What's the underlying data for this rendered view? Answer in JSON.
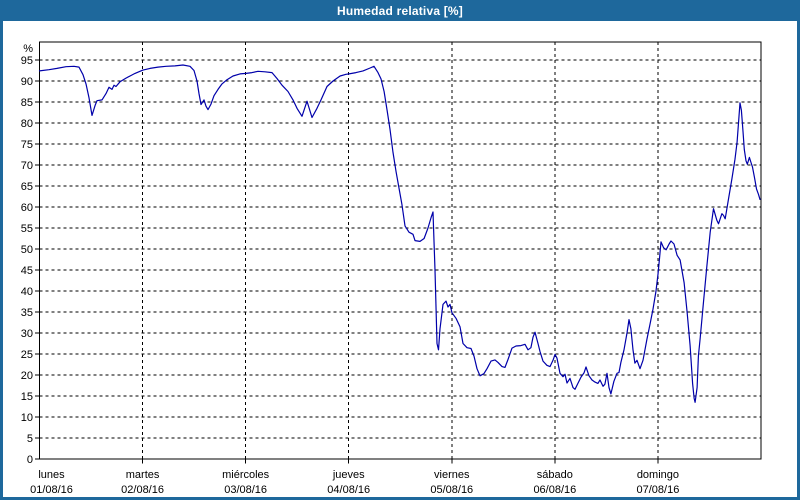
{
  "window": {
    "title": "Humedad relativa [%]"
  },
  "colors": {
    "titlebar_bg": "#1E689C",
    "titlebar_text": "#FFFFFF",
    "outer_border": "#1E689C",
    "plot_bg": "#FFFFFF",
    "line": "#0000AA",
    "grid": "#000000",
    "axis": "#000000",
    "text": "#000000"
  },
  "chart_data": {
    "type": "line",
    "title": "Humedad relativa [%]",
    "xlabel": "",
    "ylabel": "%",
    "ylim": [
      0,
      99.3
    ],
    "xlim_days": [
      0,
      7
    ],
    "y_ticks": [
      0,
      5,
      10,
      15,
      20,
      25,
      30,
      35,
      40,
      45,
      50,
      55,
      60,
      65,
      70,
      75,
      80,
      85,
      90,
      95
    ],
    "grid": "dashed, horizontal every 5%, vertical at each day boundary",
    "legend": "none",
    "x_labels": [
      {
        "day": "lunes",
        "date": "01/08/16"
      },
      {
        "day": "martes",
        "date": "02/08/16"
      },
      {
        "day": "miércoles",
        "date": "03/08/16"
      },
      {
        "day": "jueves",
        "date": "04/08/16"
      },
      {
        "day": "viernes",
        "date": "05/08/16"
      },
      {
        "day": "sábado",
        "date": "06/08/16"
      },
      {
        "day": "domingo",
        "date": "07/08/16"
      }
    ],
    "series": [
      {
        "name": "Humedad relativa",
        "unit": "%",
        "x_unit": "days since lunes 01/08/16 00:00",
        "points": [
          [
            0.0,
            92.4
          ],
          [
            0.092,
            92.7
          ],
          [
            0.17,
            93.0
          ],
          [
            0.257,
            93.4
          ],
          [
            0.335,
            93.5
          ],
          [
            0.383,
            93.3
          ],
          [
            0.422,
            91.5
          ],
          [
            0.451,
            89.3
          ],
          [
            0.48,
            86.0
          ],
          [
            0.509,
            81.8
          ],
          [
            0.539,
            84.2
          ],
          [
            0.558,
            85.3
          ],
          [
            0.606,
            85.5
          ],
          [
            0.645,
            87.0
          ],
          [
            0.674,
            88.5
          ],
          [
            0.703,
            88.0
          ],
          [
            0.723,
            89.0
          ],
          [
            0.742,
            88.7
          ],
          [
            0.781,
            89.8
          ],
          [
            0.839,
            90.7
          ],
          [
            0.888,
            91.3
          ],
          [
            0.927,
            91.8
          ],
          [
            0.975,
            92.3
          ],
          [
            1.004,
            92.6
          ],
          [
            1.072,
            93.0
          ],
          [
            1.15,
            93.3
          ],
          [
            1.227,
            93.5
          ],
          [
            1.315,
            93.6
          ],
          [
            1.392,
            93.8
          ],
          [
            1.46,
            93.5
          ],
          [
            1.499,
            92.5
          ],
          [
            1.528,
            90.0
          ],
          [
            1.547,
            87.0
          ],
          [
            1.567,
            84.4
          ],
          [
            1.596,
            85.5
          ],
          [
            1.615,
            84.0
          ],
          [
            1.635,
            83.2
          ],
          [
            1.664,
            84.5
          ],
          [
            1.693,
            86.5
          ],
          [
            1.732,
            88.0
          ],
          [
            1.771,
            89.3
          ],
          [
            1.819,
            90.3
          ],
          [
            1.877,
            91.2
          ],
          [
            1.945,
            91.7
          ],
          [
            2.003,
            91.8
          ],
          [
            2.062,
            92.0
          ],
          [
            2.12,
            92.3
          ],
          [
            2.188,
            92.2
          ],
          [
            2.256,
            92.0
          ],
          [
            2.304,
            90.6
          ],
          [
            2.353,
            89.0
          ],
          [
            2.411,
            87.5
          ],
          [
            2.459,
            85.5
          ],
          [
            2.498,
            83.5
          ],
          [
            2.547,
            81.6
          ],
          [
            2.595,
            85.2
          ],
          [
            2.644,
            81.3
          ],
          [
            2.692,
            83.5
          ],
          [
            2.731,
            85.5
          ],
          [
            2.789,
            88.7
          ],
          [
            2.848,
            90.0
          ],
          [
            2.916,
            91.2
          ],
          [
            2.974,
            91.6
          ],
          [
            3.003,
            91.7
          ],
          [
            3.071,
            92.0
          ],
          [
            3.139,
            92.4
          ],
          [
            3.207,
            93.1
          ],
          [
            3.245,
            93.5
          ],
          [
            3.284,
            92.0
          ],
          [
            3.313,
            90.5
          ],
          [
            3.343,
            87.5
          ],
          [
            3.372,
            83.0
          ],
          [
            3.401,
            78.5
          ],
          [
            3.43,
            73.0
          ],
          [
            3.459,
            68.5
          ],
          [
            3.488,
            64.5
          ],
          [
            3.517,
            60.5
          ],
          [
            3.546,
            55.5
          ],
          [
            3.585,
            54.0
          ],
          [
            3.624,
            53.5
          ],
          [
            3.643,
            52.0
          ],
          [
            3.692,
            51.8
          ],
          [
            3.731,
            52.5
          ],
          [
            3.769,
            55.0
          ],
          [
            3.799,
            57.5
          ],
          [
            3.818,
            58.8
          ],
          [
            3.837,
            45.0
          ],
          [
            3.857,
            27.5
          ],
          [
            3.871,
            26.0
          ],
          [
            3.886,
            31.0
          ],
          [
            3.915,
            36.8
          ],
          [
            3.944,
            37.6
          ],
          [
            3.963,
            36.2
          ],
          [
            3.983,
            36.8
          ],
          [
            4.002,
            34.8
          ],
          [
            4.041,
            33.5
          ],
          [
            4.08,
            31.5
          ],
          [
            4.109,
            27.5
          ],
          [
            4.148,
            26.5
          ],
          [
            4.186,
            26.3
          ],
          [
            4.216,
            24.5
          ],
          [
            4.245,
            21.5
          ],
          [
            4.274,
            19.8
          ],
          [
            4.312,
            20.3
          ],
          [
            4.342,
            21.5
          ],
          [
            4.38,
            23.3
          ],
          [
            4.419,
            23.6
          ],
          [
            4.448,
            23.0
          ],
          [
            4.487,
            22.0
          ],
          [
            4.516,
            21.8
          ],
          [
            4.545,
            23.7
          ],
          [
            4.584,
            26.4
          ],
          [
            4.623,
            26.9
          ],
          [
            4.671,
            27.0
          ],
          [
            4.71,
            27.3
          ],
          [
            4.739,
            26.0
          ],
          [
            4.768,
            26.5
          ],
          [
            4.788,
            29.0
          ],
          [
            4.807,
            30.2
          ],
          [
            4.836,
            27.5
          ],
          [
            4.856,
            25.6
          ],
          [
            4.885,
            23.3
          ],
          [
            4.923,
            22.3
          ],
          [
            4.953,
            22.0
          ],
          [
            4.982,
            23.5
          ],
          [
            5.001,
            24.9
          ],
          [
            5.021,
            24.0
          ],
          [
            5.05,
            20.4
          ],
          [
            5.079,
            19.6
          ],
          [
            5.098,
            20.2
          ],
          [
            5.118,
            18.1
          ],
          [
            5.147,
            19.2
          ],
          [
            5.176,
            17.0
          ],
          [
            5.195,
            16.6
          ],
          [
            5.224,
            18.0
          ],
          [
            5.254,
            19.5
          ],
          [
            5.283,
            20.5
          ],
          [
            5.302,
            21.9
          ],
          [
            5.331,
            19.8
          ],
          [
            5.36,
            18.8
          ],
          [
            5.389,
            18.3
          ],
          [
            5.418,
            18.0
          ],
          [
            5.438,
            18.8
          ],
          [
            5.467,
            17.3
          ],
          [
            5.486,
            17.8
          ],
          [
            5.506,
            20.4
          ],
          [
            5.525,
            17.0
          ],
          [
            5.544,
            15.5
          ],
          [
            5.573,
            18.5
          ],
          [
            5.603,
            20.4
          ],
          [
            5.622,
            20.6
          ],
          [
            5.641,
            23.0
          ],
          [
            5.671,
            26.0
          ],
          [
            5.7,
            30.0
          ],
          [
            5.719,
            33.2
          ],
          [
            5.738,
            31.0
          ],
          [
            5.758,
            26.0
          ],
          [
            5.777,
            22.8
          ],
          [
            5.797,
            23.5
          ],
          [
            5.826,
            21.5
          ],
          [
            5.855,
            23.5
          ],
          [
            5.894,
            28.6
          ],
          [
            5.923,
            32.1
          ],
          [
            5.952,
            35.7
          ],
          [
            5.981,
            40.0
          ],
          [
            6.001,
            44.0
          ],
          [
            6.016,
            48.0
          ],
          [
            6.03,
            51.7
          ],
          [
            6.055,
            50.3
          ],
          [
            6.079,
            49.8
          ],
          [
            6.108,
            51.2
          ],
          [
            6.127,
            51.9
          ],
          [
            6.156,
            51.2
          ],
          [
            6.186,
            48.5
          ],
          [
            6.215,
            47.4
          ],
          [
            6.254,
            42.0
          ],
          [
            6.283,
            35.0
          ],
          [
            6.312,
            27.0
          ],
          [
            6.336,
            18.0
          ],
          [
            6.351,
            14.5
          ],
          [
            6.361,
            13.5
          ],
          [
            6.38,
            17.0
          ],
          [
            6.393,
            24.5
          ],
          [
            6.41,
            28.8
          ],
          [
            6.442,
            37.4
          ],
          [
            6.475,
            46.0
          ],
          [
            6.507,
            54.0
          ],
          [
            6.539,
            59.6
          ],
          [
            6.572,
            56.8
          ],
          [
            6.588,
            56.0
          ],
          [
            6.621,
            58.4
          ],
          [
            6.636,
            58.0
          ],
          [
            6.653,
            57.2
          ],
          [
            6.685,
            61.9
          ],
          [
            6.718,
            66.7
          ],
          [
            6.748,
            71.4
          ],
          [
            6.768,
            75.5
          ],
          [
            6.782,
            80.0
          ],
          [
            6.796,
            84.8
          ],
          [
            6.81,
            83.0
          ],
          [
            6.825,
            78.0
          ],
          [
            6.838,
            73.7
          ],
          [
            6.854,
            71.0
          ],
          [
            6.867,
            70.2
          ],
          [
            6.887,
            71.8
          ],
          [
            6.903,
            70.6
          ],
          [
            6.918,
            69.5
          ],
          [
            6.937,
            67.0
          ],
          [
            6.956,
            64.3
          ],
          [
            6.976,
            63.0
          ],
          [
            6.99,
            61.8
          ]
        ]
      }
    ]
  }
}
